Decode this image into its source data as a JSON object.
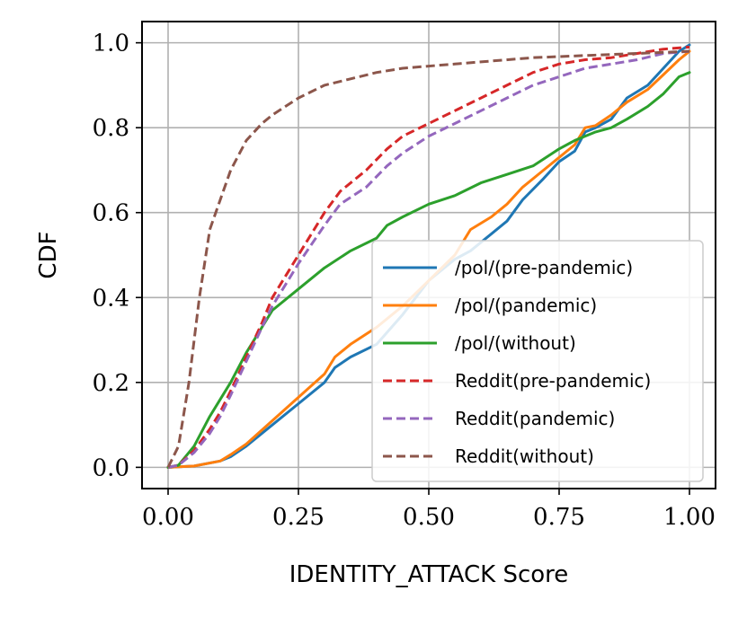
{
  "chart_data": {
    "type": "line",
    "title": "",
    "xlabel": "IDENTITY_ATTACK Score",
    "ylabel": "CDF",
    "xlim": [
      -0.05,
      1.05
    ],
    "ylim": [
      -0.05,
      1.05
    ],
    "x_ticks": [
      0.0,
      0.25,
      0.5,
      0.75,
      1.0
    ],
    "x_tick_labels": [
      "0.00",
      "0.25",
      "0.50",
      "0.75",
      "1.00"
    ],
    "y_ticks": [
      0.0,
      0.2,
      0.4,
      0.6,
      0.8,
      1.0
    ],
    "y_tick_labels": [
      "0.0",
      "0.2",
      "0.4",
      "0.6",
      "0.8",
      "1.0"
    ],
    "grid": true,
    "legend_position": "lower-right",
    "series": [
      {
        "name": "/pol/(pre-pandemic)",
        "color": "#1f77b4",
        "dash": "solid",
        "x": [
          0,
          0.05,
          0.1,
          0.12,
          0.15,
          0.2,
          0.25,
          0.3,
          0.32,
          0.35,
          0.4,
          0.45,
          0.5,
          0.55,
          0.58,
          0.62,
          0.65,
          0.68,
          0.72,
          0.75,
          0.78,
          0.8,
          0.82,
          0.85,
          0.88,
          0.92,
          0.95,
          0.98,
          1.0
        ],
        "y": [
          0,
          0.003,
          0.015,
          0.025,
          0.05,
          0.1,
          0.15,
          0.2,
          0.235,
          0.26,
          0.29,
          0.36,
          0.44,
          0.49,
          0.51,
          0.55,
          0.58,
          0.63,
          0.68,
          0.72,
          0.745,
          0.79,
          0.8,
          0.82,
          0.87,
          0.9,
          0.94,
          0.98,
          0.995
        ]
      },
      {
        "name": "/pol/(pandemic)",
        "color": "#ff7f0e",
        "dash": "solid",
        "x": [
          0,
          0.05,
          0.1,
          0.12,
          0.15,
          0.2,
          0.25,
          0.3,
          0.32,
          0.35,
          0.4,
          0.45,
          0.5,
          0.55,
          0.58,
          0.62,
          0.65,
          0.68,
          0.72,
          0.75,
          0.78,
          0.8,
          0.82,
          0.85,
          0.88,
          0.92,
          0.95,
          0.98,
          1.0
        ],
        "y": [
          0,
          0.003,
          0.015,
          0.03,
          0.055,
          0.11,
          0.165,
          0.22,
          0.26,
          0.29,
          0.33,
          0.38,
          0.44,
          0.5,
          0.56,
          0.59,
          0.62,
          0.66,
          0.7,
          0.73,
          0.76,
          0.8,
          0.805,
          0.83,
          0.86,
          0.89,
          0.925,
          0.96,
          0.98
        ]
      },
      {
        "name": "/pol/(without)",
        "color": "#2ca02c",
        "dash": "solid",
        "x": [
          0,
          0.02,
          0.05,
          0.08,
          0.1,
          0.12,
          0.15,
          0.18,
          0.2,
          0.25,
          0.3,
          0.35,
          0.4,
          0.42,
          0.45,
          0.5,
          0.55,
          0.6,
          0.65,
          0.7,
          0.75,
          0.78,
          0.82,
          0.85,
          0.88,
          0.92,
          0.95,
          0.98,
          1.0
        ],
        "y": [
          0,
          0.005,
          0.05,
          0.12,
          0.16,
          0.2,
          0.27,
          0.33,
          0.37,
          0.42,
          0.47,
          0.51,
          0.54,
          0.57,
          0.59,
          0.62,
          0.64,
          0.67,
          0.69,
          0.71,
          0.75,
          0.77,
          0.79,
          0.8,
          0.82,
          0.85,
          0.88,
          0.92,
          0.93
        ]
      },
      {
        "name": "Reddit(pre-pandemic)",
        "color": "#d62728",
        "dash": "dashed",
        "x": [
          0,
          0.02,
          0.05,
          0.08,
          0.1,
          0.12,
          0.15,
          0.18,
          0.2,
          0.25,
          0.3,
          0.33,
          0.38,
          0.42,
          0.45,
          0.5,
          0.55,
          0.6,
          0.65,
          0.7,
          0.75,
          0.8,
          0.85,
          0.9,
          0.95,
          1.0
        ],
        "y": [
          0,
          0.005,
          0.04,
          0.09,
          0.13,
          0.18,
          0.26,
          0.34,
          0.4,
          0.5,
          0.6,
          0.65,
          0.7,
          0.75,
          0.78,
          0.81,
          0.84,
          0.87,
          0.9,
          0.93,
          0.95,
          0.96,
          0.965,
          0.975,
          0.985,
          0.99
        ]
      },
      {
        "name": "Reddit(pandemic)",
        "color": "#9467bd",
        "dash": "dashed",
        "x": [
          0,
          0.02,
          0.05,
          0.08,
          0.1,
          0.12,
          0.15,
          0.18,
          0.2,
          0.25,
          0.3,
          0.33,
          0.38,
          0.42,
          0.45,
          0.5,
          0.55,
          0.6,
          0.65,
          0.7,
          0.75,
          0.8,
          0.85,
          0.9,
          0.95,
          1.0
        ],
        "y": [
          0,
          0.005,
          0.035,
          0.08,
          0.12,
          0.17,
          0.25,
          0.33,
          0.38,
          0.48,
          0.57,
          0.62,
          0.66,
          0.71,
          0.74,
          0.78,
          0.81,
          0.84,
          0.87,
          0.9,
          0.92,
          0.94,
          0.95,
          0.96,
          0.975,
          0.98
        ]
      },
      {
        "name": "Reddit(without)",
        "color": "#8c564b",
        "dash": "dashed",
        "x": [
          0,
          0.02,
          0.04,
          0.06,
          0.08,
          0.1,
          0.12,
          0.15,
          0.18,
          0.2,
          0.25,
          0.3,
          0.35,
          0.4,
          0.45,
          0.5,
          0.55,
          0.6,
          0.7,
          0.8,
          0.9,
          1.0
        ],
        "y": [
          0,
          0.05,
          0.2,
          0.4,
          0.56,
          0.63,
          0.7,
          0.77,
          0.81,
          0.83,
          0.87,
          0.9,
          0.915,
          0.93,
          0.94,
          0.945,
          0.95,
          0.955,
          0.965,
          0.97,
          0.975,
          0.98
        ]
      }
    ]
  }
}
